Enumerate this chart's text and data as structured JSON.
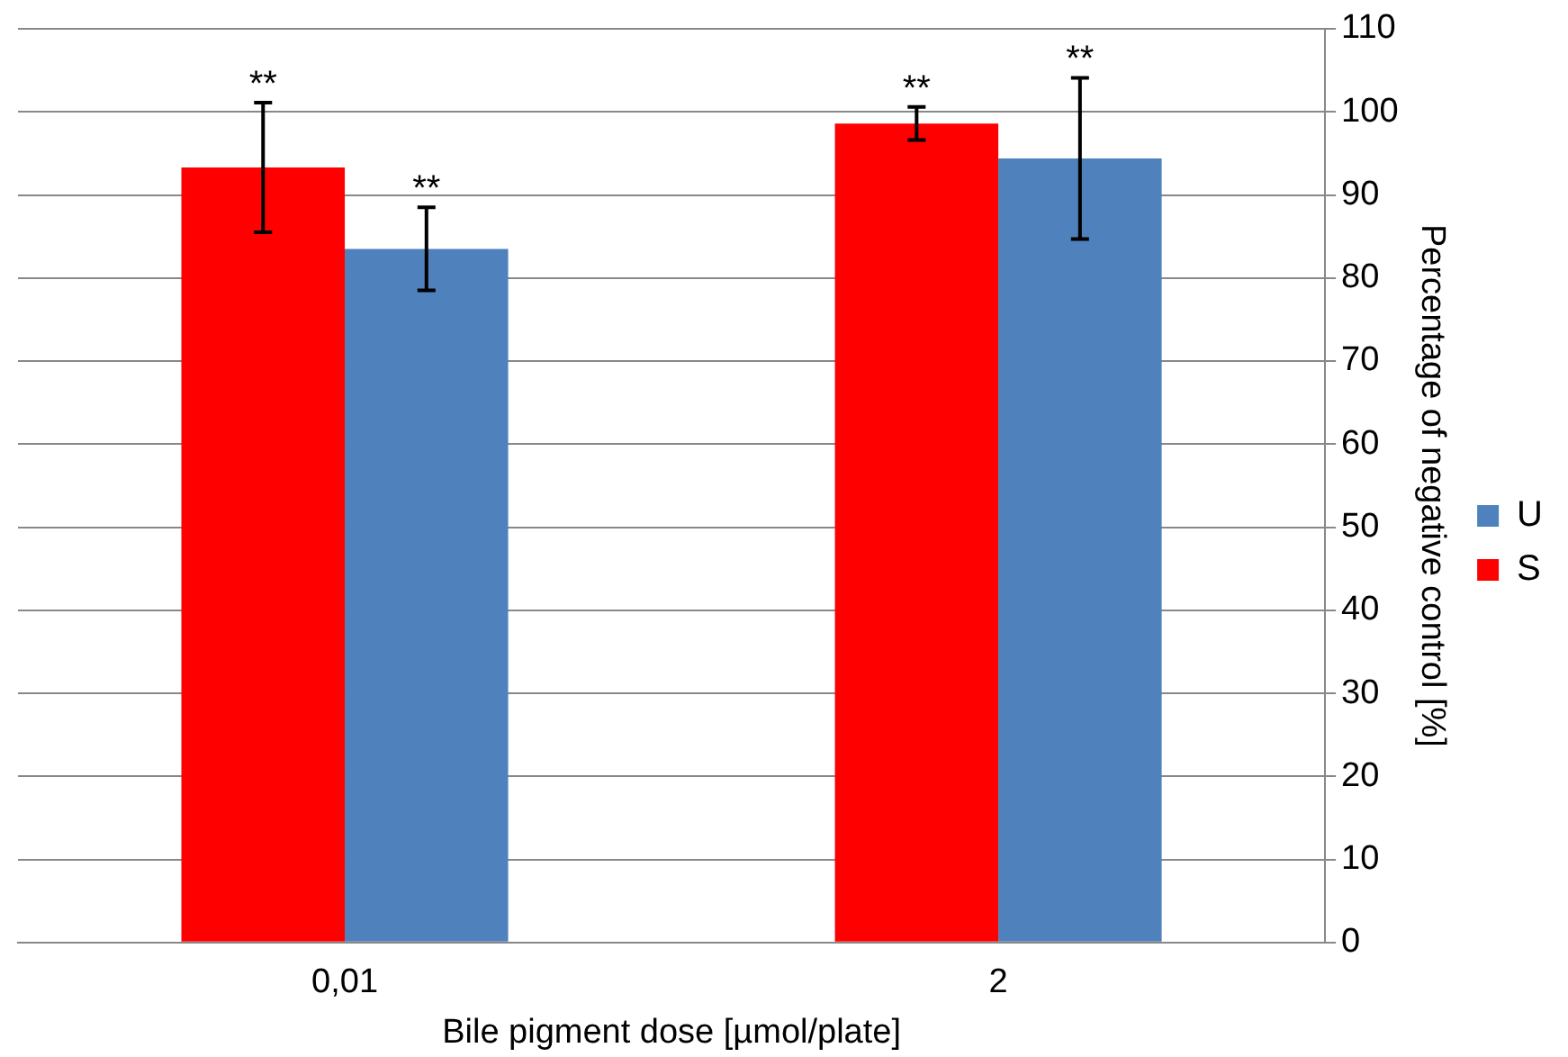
{
  "chart_data": {
    "type": "bar",
    "xlabel": "Bile pigment dose [µmol/plate]",
    "ylabel": "Percentage of negative control [%]",
    "categories": [
      "0,01",
      "2"
    ],
    "series": [
      {
        "name": "S",
        "color": "#ff0000",
        "values": [
          93.3,
          98.6
        ],
        "errors": [
          7.8,
          2.0
        ]
      },
      {
        "name": "U",
        "color": "#4f81bd",
        "values": [
          83.5,
          94.4
        ],
        "errors": [
          5.0,
          9.7
        ]
      }
    ],
    "ylim": [
      0,
      110
    ],
    "yticks": [
      0,
      10,
      20,
      30,
      40,
      50,
      60,
      70,
      80,
      90,
      100,
      110
    ],
    "grid": "y",
    "legend": "right",
    "annotations": [
      "**",
      "**",
      "**",
      "**"
    ]
  }
}
